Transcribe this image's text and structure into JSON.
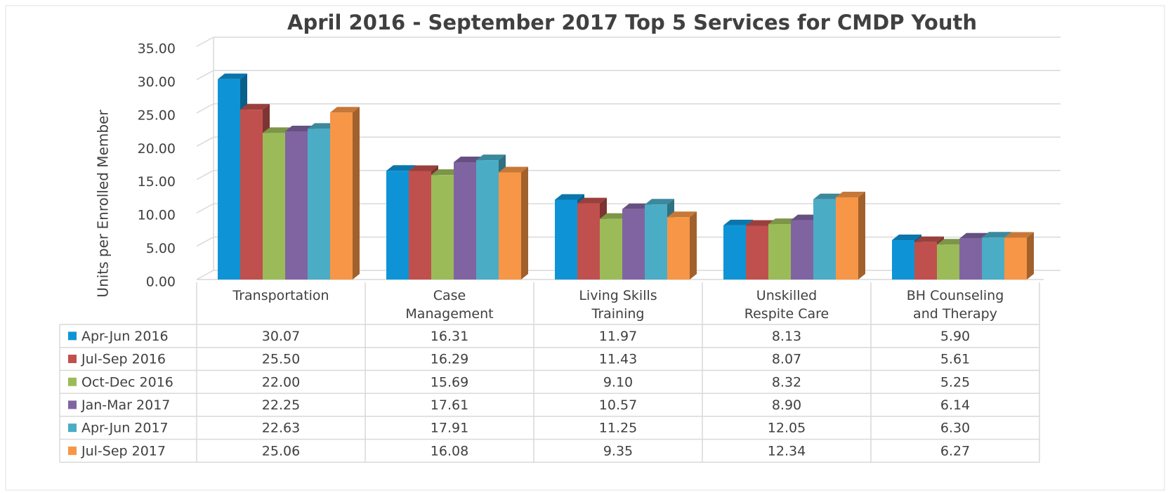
{
  "chart_data": {
    "type": "bar3d",
    "title": "April 2016 - September 2017 Top 5 Services for CMDP Youth",
    "y_label": "Units per Enrolled Member",
    "categories": [
      "Transportation",
      "Case\nManagement",
      "Living Skills\nTraining",
      "Unskilled\nRespite Care",
      "BH Counseling\nand Therapy"
    ],
    "series": [
      {
        "name": "Apr-Jun 2016",
        "color": "#0e94d6",
        "values": [
          30.07,
          16.31,
          11.97,
          8.13,
          5.9
        ],
        "value_labels": [
          "30.07",
          "16.31",
          "11.97",
          "8.13",
          "5.90"
        ]
      },
      {
        "name": "Jul-Sep 2016",
        "color": "#c0504d",
        "values": [
          25.5,
          16.29,
          11.43,
          8.07,
          5.61
        ],
        "value_labels": [
          "25.50",
          "16.29",
          "11.43",
          "8.07",
          "5.61"
        ]
      },
      {
        "name": "Oct-Dec 2016",
        "color": "#9bbb59",
        "values": [
          22,
          15.69,
          9.1,
          8.32,
          5.25
        ],
        "value_labels": [
          "22.00",
          "15.69",
          "9.10",
          "8.32",
          "5.25"
        ]
      },
      {
        "name": "Jan-Mar 2017",
        "color": "#8064a2",
        "values": [
          22.25,
          17.61,
          10.57,
          8.9,
          6.14
        ],
        "value_labels": [
          "22.25",
          "17.61",
          "10.57",
          "8.90",
          "6.14"
        ]
      },
      {
        "name": "Apr-Jun 2017",
        "color": "#4bacc6",
        "values": [
          22.63,
          17.91,
          11.25,
          12.05,
          6.3
        ],
        "value_labels": [
          "22.63",
          "17.91",
          "11.25",
          "12.05",
          "6.30"
        ]
      },
      {
        "name": "Jul-Sep 2017",
        "color": "#f79646",
        "values": [
          25.06,
          16.08,
          9.35,
          12.34,
          6.27
        ],
        "value_labels": [
          "25.06",
          "16.08",
          "9.35",
          "12.34",
          "6.27"
        ]
      }
    ],
    "ylim": [
      0,
      35
    ],
    "yticks": [
      {
        "value": 0,
        "label": "0.00"
      },
      {
        "value": 5,
        "label": "5.00"
      },
      {
        "value": 10,
        "label": "10.00"
      },
      {
        "value": 15,
        "label": "15.00"
      },
      {
        "value": 20,
        "label": "20.00"
      },
      {
        "value": 25,
        "label": "25.00"
      },
      {
        "value": 30,
        "label": "30.00"
      },
      {
        "value": 35,
        "label": "35.00"
      }
    ],
    "grid": true
  }
}
